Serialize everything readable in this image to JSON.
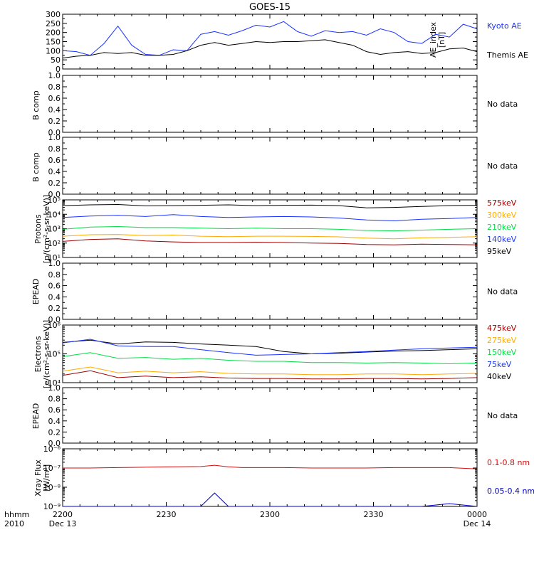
{
  "title": "GOES-15",
  "colors": {
    "black": "#000000",
    "blue": "#1a33ff",
    "red": "#d01010",
    "darkred": "#a00000",
    "orange": "#ffaa00",
    "green": "#00dd44",
    "navy": "#0000cc"
  },
  "time_axis": {
    "ticks": [
      "2200",
      "2230",
      "2300",
      "2330",
      "0000"
    ],
    "dates": [
      "Dec 13",
      "Dec 14"
    ],
    "corner_top": "hhmm",
    "corner_bottom": "2010"
  },
  "panels": {
    "ae": {
      "ylabel": "AE_index\n[nT]",
      "yticks": [
        "0",
        "50",
        "100",
        "150",
        "200",
        "250",
        "300"
      ],
      "legend": [
        {
          "text": "Kyoto AE",
          "color": "#1a33ff"
        },
        {
          "text": "Themis AE",
          "color": "#000000"
        }
      ]
    },
    "bcomp1": {
      "ylabel": "B comp",
      "yticks": [
        "0.0",
        "0.2",
        "0.4",
        "0.6",
        "0.8",
        "1.0"
      ],
      "note": "No data"
    },
    "bcomp2": {
      "ylabel": "B comp",
      "yticks": [
        "0.0",
        "0.2",
        "0.4",
        "0.6",
        "0.8",
        "1.0"
      ],
      "note": "No data"
    },
    "protons": {
      "ylabel": "Protons\n[p/(cm²-s-sr-keV)]",
      "yticks": [
        "10¹",
        "10²",
        "10³",
        "10⁴",
        "10⁵"
      ],
      "legend": [
        {
          "text": "575keV",
          "color": "#a00000"
        },
        {
          "text": "300keV",
          "color": "#ffaa00"
        },
        {
          "text": "210keV",
          "color": "#00dd44"
        },
        {
          "text": "140keV",
          "color": "#1a33ff"
        },
        {
          "text": "95keV",
          "color": "#000000"
        }
      ]
    },
    "epead1": {
      "ylabel": "EPEAD",
      "yticks": [
        "0.0",
        "0.2",
        "0.4",
        "0.6",
        "0.8",
        "1.0"
      ],
      "note": "No data"
    },
    "electrons": {
      "ylabel": "Electrons\n[e/(cm²-s-sr-keV)]",
      "yticks": [
        "10⁴",
        "10⁵",
        "10⁶"
      ],
      "legend": [
        {
          "text": "475keV",
          "color": "#a00000"
        },
        {
          "text": "275keV",
          "color": "#ffaa00"
        },
        {
          "text": "150keV",
          "color": "#00dd44"
        },
        {
          "text": "75keV",
          "color": "#1a33ff"
        },
        {
          "text": "40keV",
          "color": "#000000"
        }
      ]
    },
    "epead2": {
      "ylabel": "EPEAD",
      "yticks": [
        "0.0",
        "0.2",
        "0.4",
        "0.6",
        "0.8",
        "1.0"
      ],
      "note": "No data"
    },
    "xray": {
      "ylabel": "Xray Flux\n[W/m²]",
      "yticks": [
        "10⁻⁹",
        "10⁻⁸",
        "10⁻⁷",
        "10⁻⁶"
      ],
      "legend": [
        {
          "text": "0.1-0.8 nm",
          "color": "#d01010"
        },
        {
          "text": "0.05-0.4 nm",
          "color": "#0000cc"
        }
      ]
    }
  },
  "chart_data": [
    {
      "type": "line",
      "title": "GOES-15",
      "ylabel": "AE_index [nT]",
      "ylim": [
        0,
        300
      ],
      "x": [
        0,
        4,
        8,
        12,
        16,
        20,
        24,
        28,
        32,
        36,
        40,
        44,
        48,
        52,
        56,
        60,
        64,
        68,
        72,
        76,
        80,
        84,
        88,
        92,
        96,
        100,
        104,
        108,
        112,
        116,
        120
      ],
      "x_unit": "minutes after 2200 UT, 13 Dec 2010",
      "series": [
        {
          "name": "Kyoto AE",
          "color": "#1a33ff",
          "values": [
            100,
            95,
            75,
            140,
            235,
            130,
            80,
            75,
            105,
            100,
            190,
            205,
            185,
            210,
            240,
            230,
            260,
            205,
            180,
            210,
            200,
            205,
            185,
            220,
            200,
            150,
            140,
            190,
            175,
            245,
            220
          ]
        },
        {
          "name": "Themis AE",
          "color": "#000000",
          "values": [
            60,
            70,
            75,
            90,
            85,
            90,
            75,
            75,
            80,
            100,
            130,
            145,
            130,
            140,
            150,
            145,
            150,
            150,
            155,
            160,
            145,
            130,
            95,
            80,
            90,
            95,
            85,
            90,
            110,
            115,
            95
          ]
        }
      ]
    },
    {
      "type": "line",
      "ylabel": "Protons [p/(cm²-s-sr-keV)]",
      "ylim": [
        10,
        100000
      ],
      "yscale": "log",
      "x": [
        0,
        8,
        16,
        24,
        32,
        40,
        48,
        56,
        64,
        72,
        80,
        88,
        96,
        104,
        112,
        120
      ],
      "x_unit": "minutes after 2200 UT, 13 Dec 2010",
      "series": [
        {
          "name": "95keV",
          "color": "#000000",
          "values": [
            40000,
            45000,
            48000,
            38000,
            40000,
            42000,
            45000,
            40000,
            42000,
            43000,
            40000,
            28000,
            30000,
            35000,
            40000,
            42000
          ]
        },
        {
          "name": "140keV",
          "color": "#1a33ff",
          "values": [
            6000,
            7500,
            8500,
            7000,
            9500,
            7000,
            6000,
            6500,
            7000,
            6500,
            5500,
            4000,
            3500,
            4500,
            5000,
            6000
          ]
        },
        {
          "name": "210keV",
          "color": "#00dd44",
          "values": [
            900,
            1300,
            1400,
            1200,
            1200,
            1100,
            1000,
            1100,
            1000,
            1000,
            900,
            750,
            700,
            800,
            900,
            1000
          ]
        },
        {
          "name": "300keV",
          "color": "#ffaa00",
          "values": [
            300,
            380,
            400,
            330,
            360,
            300,
            280,
            300,
            300,
            290,
            270,
            220,
            200,
            230,
            250,
            280
          ]
        },
        {
          "name": "575keV",
          "color": "#a00000",
          "values": [
            130,
            180,
            200,
            140,
            120,
            110,
            110,
            115,
            110,
            100,
            95,
            80,
            75,
            85,
            80,
            75
          ]
        }
      ]
    },
    {
      "type": "line",
      "ylabel": "Electrons [e/(cm²-s-sr-keV)]",
      "ylim": [
        10000,
        1000000
      ],
      "yscale": "log",
      "x": [
        0,
        8,
        16,
        24,
        32,
        40,
        48,
        56,
        64,
        72,
        80,
        88,
        96,
        104,
        112,
        120
      ],
      "x_unit": "minutes after 2200 UT, 13 Dec 2010",
      "series": [
        {
          "name": "40keV",
          "color": "#000000",
          "values": [
            250000,
            300000,
            220000,
            260000,
            250000,
            220000,
            200000,
            180000,
            120000,
            100000,
            105000,
            115000,
            125000,
            130000,
            140000,
            150000
          ]
        },
        {
          "name": "75keV",
          "color": "#1a33ff",
          "values": [
            240000,
            320000,
            190000,
            180000,
            180000,
            140000,
            110000,
            90000,
            95000,
            100000,
            110000,
            120000,
            135000,
            150000,
            160000,
            170000
          ]
        },
        {
          "name": "150keV",
          "color": "#00dd44",
          "values": [
            80000,
            110000,
            70000,
            75000,
            65000,
            70000,
            60000,
            55000,
            55000,
            50000,
            50000,
            48000,
            50000,
            48000,
            45000,
            48000
          ]
        },
        {
          "name": "275keV",
          "color": "#ffaa00",
          "values": [
            25000,
            35000,
            22000,
            25000,
            22000,
            24000,
            21000,
            20000,
            20000,
            19000,
            19000,
            20000,
            20000,
            19000,
            20000,
            21000
          ]
        },
        {
          "name": "475keV",
          "color": "#a00000",
          "values": [
            18000,
            26000,
            15000,
            17000,
            15000,
            16000,
            14500,
            14000,
            14000,
            13500,
            13500,
            14000,
            14000,
            13500,
            14000,
            15000
          ]
        }
      ]
    },
    {
      "type": "line",
      "ylabel": "Xray Flux [W/m²]",
      "ylim": [
        1e-09,
        1e-06
      ],
      "yscale": "log",
      "x": [
        0,
        8,
        16,
        24,
        32,
        40,
        44,
        48,
        52,
        56,
        64,
        72,
        80,
        88,
        96,
        104,
        112,
        120
      ],
      "x_unit": "minutes after 2200 UT, 13 Dec 2010",
      "series": [
        {
          "name": "0.1-0.8 nm",
          "color": "#d01010",
          "values": [
            1e-07,
            1e-07,
            1.05e-07,
            1.1e-07,
            1.15e-07,
            1.2e-07,
            1.4e-07,
            1.15e-07,
            1.05e-07,
            1.05e-07,
            1.05e-07,
            1e-07,
            1e-07,
            1e-07,
            1.05e-07,
            1.05e-07,
            1.05e-07,
            9e-08
          ]
        },
        {
          "name": "0.05-0.4 nm",
          "color": "#0000cc",
          "values": [
            1e-09,
            1e-09,
            1e-09,
            1e-09,
            1e-09,
            1e-09,
            5e-09,
            1e-09,
            1e-09,
            1e-09,
            1e-09,
            1e-09,
            1e-09,
            1e-09,
            1e-09,
            1e-09,
            1.4e-09,
            1e-09
          ]
        }
      ]
    }
  ]
}
